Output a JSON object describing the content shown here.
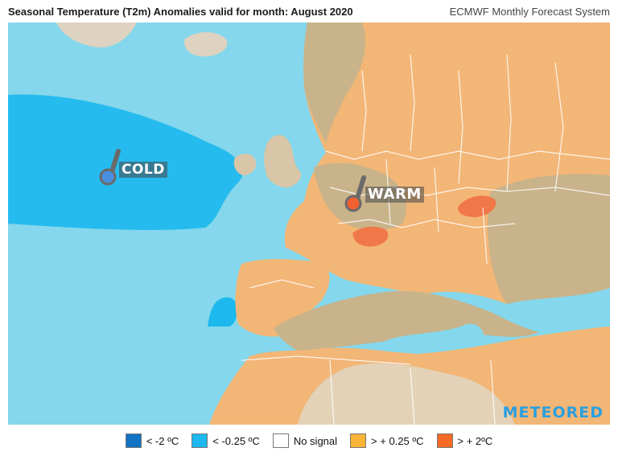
{
  "header": {
    "title": "Seasonal Temperature (T2m) Anomalies valid for month: August 2020",
    "system": "ECMWF Monthly Forecast System"
  },
  "map": {
    "labels": {
      "cold": "COLD",
      "warm": "WARM"
    },
    "brand": "METEORED"
  },
  "legend": [
    {
      "label": "< -2 ºC",
      "color": "#1272c4"
    },
    {
      "label": "< -0.25 ºC",
      "color": "#1cb8ee"
    },
    {
      "label": "No signal",
      "color": "#ffffff"
    },
    {
      "label": "> + 0.25 ºC",
      "color": "#f7b436"
    },
    {
      "label": "> + 2ºC",
      "color": "#f66a25"
    }
  ],
  "colors": {
    "ocean": "#84d7ec",
    "cold_anomaly": "#1cb8ee",
    "land_warm": "#f2b676",
    "land_neutral": "#c8b38a",
    "warm_hot": "#f07848",
    "thermometer": "#6a6a6a"
  }
}
